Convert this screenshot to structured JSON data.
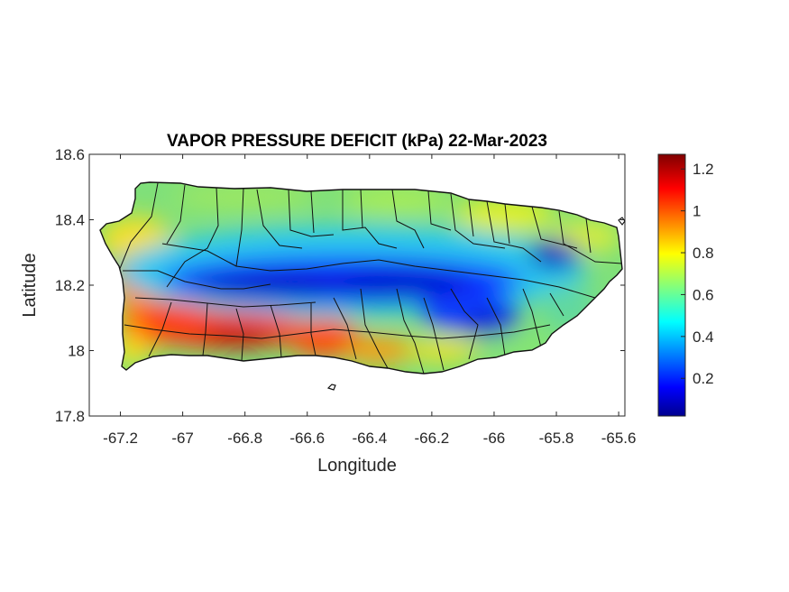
{
  "title": "VAPOR PRESSURE DEFICIT (kPa) 22-Mar-2023",
  "axes": {
    "xlabel": "Longitude",
    "ylabel": "Latitude",
    "xlim": [
      -67.3,
      -65.58
    ],
    "ylim": [
      17.8,
      18.6
    ],
    "xticks": [
      -67.2,
      -67,
      -66.8,
      -66.6,
      -66.4,
      -66.2,
      -66,
      -65.8,
      -65.6
    ],
    "xtick_labels": [
      "-67.2",
      "-67",
      "-66.8",
      "-66.6",
      "-66.4",
      "-66.2",
      "-66",
      "-65.8",
      "-65.6"
    ],
    "yticks": [
      17.8,
      18,
      18.2,
      18.4,
      18.6
    ],
    "ytick_labels": [
      "17.8",
      "18",
      "18.2",
      "18.4",
      "18.6"
    ]
  },
  "colorbar": {
    "min": 0.02,
    "max": 1.27,
    "ticks": [
      0.2,
      0.4,
      0.6,
      0.8,
      1.0,
      1.2
    ],
    "tick_labels": [
      "0.2",
      "0.4",
      "0.6",
      "0.8",
      "1",
      "1.2"
    ],
    "colormap": "jet"
  },
  "map": {
    "region": "Puerto Rico",
    "variable": "vapor pressure deficit",
    "units": "kPa",
    "date": "22-Mar-2023",
    "boundaries": "municipalities",
    "outline_color": "#111111"
  }
}
